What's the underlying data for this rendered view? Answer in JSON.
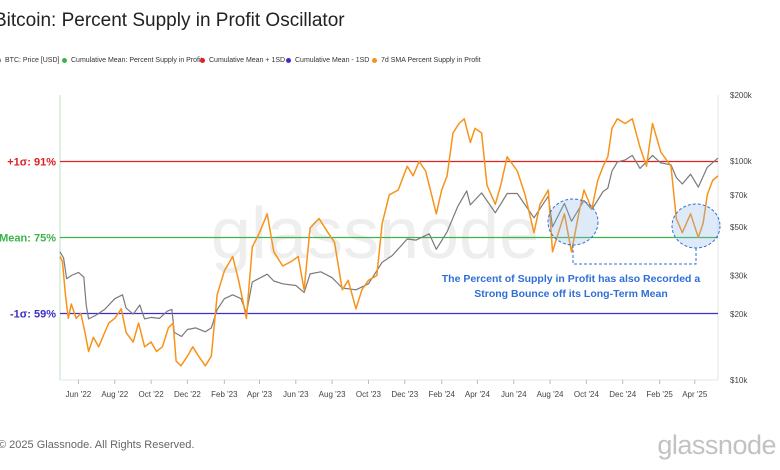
{
  "title": "Bitcoin: Percent Supply in Profit Oscillator",
  "legend": [
    {
      "label": "BTC: Price [USD]",
      "color": "#7a7a7a"
    },
    {
      "label": "Cumulative Mean: Percent Supply in Profit",
      "color": "#3cb44b"
    },
    {
      "label": "Cumulative Mean + 1SD",
      "color": "#e02020"
    },
    {
      "label": "Cumulative Mean - 1SD",
      "color": "#3a2fc9"
    },
    {
      "label": "7d SMA Percent Supply in Profit",
      "color": "#f7931a"
    }
  ],
  "footer": {
    "copyright": "© 2025 Glassnode. All Rights Reserved.",
    "brand": "glassnode"
  },
  "watermark": "glassnode",
  "annotation": {
    "line1": "The Percent of Supply in Profit has also Recorded a",
    "line2": "Strong Bounce off its Long-Term Mean",
    "color": "#2f6fd6"
  },
  "chart_data": {
    "type": "line",
    "x_labels": [
      "Jun '22",
      "Aug '22",
      "Oct '22",
      "Dec '22",
      "Feb '23",
      "Apr '23",
      "Jun '23",
      "Aug '23",
      "Oct '23",
      "Dec '23",
      "Feb '24",
      "Apr '24",
      "Jun '24",
      "Aug '24",
      "Oct '24",
      "Dec '24",
      "Feb '25",
      "Apr '25"
    ],
    "x_start": "2022-05-01",
    "x_end": "2025-05-10",
    "left_axis": {
      "unit": "%",
      "ylim": [
        45,
        105
      ],
      "labels": [
        {
          "value": 91,
          "label": "+1σ: 91%",
          "color": "#e02020"
        },
        {
          "value": 75,
          "label": "Mean: 75%",
          "color": "#3cb44b"
        },
        {
          "value": 59,
          "label": "-1σ: 59%",
          "color": "#3a2fc9"
        }
      ]
    },
    "right_axis": {
      "scale": "log",
      "ylim": [
        10000,
        200000
      ],
      "tick_values": [
        10000,
        20000,
        30000,
        50000,
        70000,
        100000,
        200000
      ],
      "tick_labels": [
        "$10k",
        "$20k",
        "$30k",
        "$50k",
        "$70k",
        "$100k",
        "$200k"
      ]
    },
    "reference_lines": [
      {
        "name": "Cumulative Mean + 1SD",
        "value": 91,
        "color": "#e02020"
      },
      {
        "name": "Cumulative Mean: Percent Supply in Profit",
        "value": 75,
        "color": "#3cb44b"
      },
      {
        "name": "Cumulative Mean - 1SD",
        "value": 59,
        "color": "#3a2fc9"
      }
    ],
    "series": [
      {
        "name": "BTC: Price [USD]",
        "axis": "right",
        "color": "#7a7a7a",
        "points": [
          [
            "2022-05-01",
            38500
          ],
          [
            "2022-05-07",
            36000
          ],
          [
            "2022-05-12",
            29000
          ],
          [
            "2022-05-20",
            30000
          ],
          [
            "2022-06-01",
            31000
          ],
          [
            "2022-06-10",
            29500
          ],
          [
            "2022-06-14",
            22000
          ],
          [
            "2022-06-18",
            19000
          ],
          [
            "2022-07-01",
            19800
          ],
          [
            "2022-07-15",
            21000
          ],
          [
            "2022-08-01",
            23500
          ],
          [
            "2022-08-14",
            24500
          ],
          [
            "2022-08-20",
            21300
          ],
          [
            "2022-09-01",
            20000
          ],
          [
            "2022-09-12",
            22000
          ],
          [
            "2022-09-20",
            19000
          ],
          [
            "2022-10-01",
            19300
          ],
          [
            "2022-10-15",
            19100
          ],
          [
            "2022-10-28",
            20600
          ],
          [
            "2022-11-05",
            21000
          ],
          [
            "2022-11-09",
            16500
          ],
          [
            "2022-11-21",
            15800
          ],
          [
            "2022-12-01",
            17000
          ],
          [
            "2022-12-15",
            17300
          ],
          [
            "2022-12-31",
            16600
          ],
          [
            "2023-01-10",
            17300
          ],
          [
            "2023-01-20",
            21000
          ],
          [
            "2023-02-01",
            23500
          ],
          [
            "2023-02-15",
            24500
          ],
          [
            "2023-03-01",
            23500
          ],
          [
            "2023-03-10",
            20200
          ],
          [
            "2023-03-20",
            28000
          ],
          [
            "2023-04-14",
            30400
          ],
          [
            "2023-04-25",
            28300
          ],
          [
            "2023-05-10",
            27500
          ],
          [
            "2023-06-01",
            27000
          ],
          [
            "2023-06-15",
            25100
          ],
          [
            "2023-06-25",
            30500
          ],
          [
            "2023-07-13",
            31200
          ],
          [
            "2023-08-01",
            29300
          ],
          [
            "2023-08-18",
            26300
          ],
          [
            "2023-09-10",
            25800
          ],
          [
            "2023-10-01",
            27500
          ],
          [
            "2023-10-24",
            34500
          ],
          [
            "2023-11-10",
            37000
          ],
          [
            "2023-12-05",
            44000
          ],
          [
            "2023-12-20",
            43500
          ],
          [
            "2024-01-11",
            46500
          ],
          [
            "2024-01-23",
            39500
          ],
          [
            "2024-02-10",
            47500
          ],
          [
            "2024-02-28",
            62000
          ],
          [
            "2024-03-14",
            73000
          ],
          [
            "2024-03-20",
            63000
          ],
          [
            "2024-04-08",
            71500
          ],
          [
            "2024-05-01",
            58000
          ],
          [
            "2024-05-21",
            71000
          ],
          [
            "2024-06-07",
            71000
          ],
          [
            "2024-07-05",
            55000
          ],
          [
            "2024-07-29",
            69000
          ],
          [
            "2024-08-05",
            50000
          ],
          [
            "2024-08-25",
            64000
          ],
          [
            "2024-09-06",
            53000
          ],
          [
            "2024-09-27",
            66000
          ],
          [
            "2024-10-10",
            60000
          ],
          [
            "2024-10-29",
            72500
          ],
          [
            "2024-11-06",
            75000
          ],
          [
            "2024-11-13",
            90000
          ],
          [
            "2024-11-22",
            99000
          ],
          [
            "2024-12-05",
            101000
          ],
          [
            "2024-12-17",
            106000
          ],
          [
            "2024-12-30",
            92500
          ],
          [
            "2025-01-20",
            106000
          ],
          [
            "2025-02-03",
            98000
          ],
          [
            "2025-02-20",
            96000
          ],
          [
            "2025-03-01",
            84000
          ],
          [
            "2025-03-11",
            78500
          ],
          [
            "2025-03-25",
            87000
          ],
          [
            "2025-04-07",
            76000
          ],
          [
            "2025-04-22",
            93500
          ],
          [
            "2025-05-10",
            103000
          ]
        ]
      },
      {
        "name": "7d SMA Percent Supply in Profit",
        "axis": "left",
        "color": "#f7931a",
        "points": [
          [
            "2022-05-01",
            71
          ],
          [
            "2022-05-05",
            70
          ],
          [
            "2022-05-10",
            63
          ],
          [
            "2022-05-15",
            58
          ],
          [
            "2022-05-20",
            61
          ],
          [
            "2022-05-28",
            58
          ],
          [
            "2022-06-05",
            59
          ],
          [
            "2022-06-12",
            55
          ],
          [
            "2022-06-18",
            51
          ],
          [
            "2022-06-26",
            54
          ],
          [
            "2022-07-05",
            52
          ],
          [
            "2022-07-15",
            55
          ],
          [
            "2022-07-22",
            57
          ],
          [
            "2022-08-01",
            58
          ],
          [
            "2022-08-12",
            60
          ],
          [
            "2022-08-20",
            55
          ],
          [
            "2022-09-01",
            53
          ],
          [
            "2022-09-10",
            57
          ],
          [
            "2022-09-20",
            52
          ],
          [
            "2022-10-01",
            53
          ],
          [
            "2022-10-10",
            51
          ],
          [
            "2022-10-20",
            52
          ],
          [
            "2022-10-30",
            56
          ],
          [
            "2022-11-07",
            57
          ],
          [
            "2022-11-12",
            49
          ],
          [
            "2022-11-20",
            48
          ],
          [
            "2022-12-01",
            50
          ],
          [
            "2022-12-10",
            52
          ],
          [
            "2022-12-20",
            50
          ],
          [
            "2022-12-31",
            48
          ],
          [
            "2023-01-10",
            50
          ],
          [
            "2023-01-20",
            63
          ],
          [
            "2023-02-01",
            68
          ],
          [
            "2023-02-15",
            71
          ],
          [
            "2023-02-25",
            66
          ],
          [
            "2023-03-10",
            58
          ],
          [
            "2023-03-20",
            73
          ],
          [
            "2023-04-01",
            76
          ],
          [
            "2023-04-14",
            80
          ],
          [
            "2023-04-25",
            72
          ],
          [
            "2023-05-10",
            69
          ],
          [
            "2023-05-25",
            70
          ],
          [
            "2023-06-05",
            71
          ],
          [
            "2023-06-15",
            64
          ],
          [
            "2023-06-25",
            77
          ],
          [
            "2023-07-10",
            79
          ],
          [
            "2023-07-25",
            76
          ],
          [
            "2023-08-05",
            74
          ],
          [
            "2023-08-18",
            64
          ],
          [
            "2023-08-28",
            66
          ],
          [
            "2023-09-10",
            60
          ],
          [
            "2023-09-20",
            64
          ],
          [
            "2023-10-01",
            66
          ],
          [
            "2023-10-15",
            67
          ],
          [
            "2023-10-24",
            78
          ],
          [
            "2023-11-05",
            84
          ],
          [
            "2023-11-20",
            85
          ],
          [
            "2023-12-05",
            90
          ],
          [
            "2023-12-15",
            88
          ],
          [
            "2023-12-25",
            91
          ],
          [
            "2024-01-05",
            89
          ],
          [
            "2024-01-15",
            84
          ],
          [
            "2024-01-23",
            80
          ],
          [
            "2024-02-01",
            85
          ],
          [
            "2024-02-10",
            88
          ],
          [
            "2024-02-20",
            97
          ],
          [
            "2024-03-01",
            99
          ],
          [
            "2024-03-10",
            100
          ],
          [
            "2024-03-20",
            95
          ],
          [
            "2024-03-28",
            98
          ],
          [
            "2024-04-08",
            97
          ],
          [
            "2024-04-17",
            86
          ],
          [
            "2024-05-01",
            82
          ],
          [
            "2024-05-10",
            86
          ],
          [
            "2024-05-21",
            92
          ],
          [
            "2024-06-07",
            89
          ],
          [
            "2024-06-20",
            84
          ],
          [
            "2024-07-05",
            76
          ],
          [
            "2024-07-15",
            82
          ],
          [
            "2024-07-29",
            85
          ],
          [
            "2024-08-05",
            72
          ],
          [
            "2024-08-15",
            76
          ],
          [
            "2024-08-25",
            80
          ],
          [
            "2024-09-06",
            72
          ],
          [
            "2024-09-18",
            80
          ],
          [
            "2024-09-27",
            85
          ],
          [
            "2024-10-10",
            81
          ],
          [
            "2024-10-20",
            87
          ],
          [
            "2024-10-29",
            90
          ],
          [
            "2024-11-06",
            92
          ],
          [
            "2024-11-13",
            98
          ],
          [
            "2024-11-22",
            100
          ],
          [
            "2024-12-05",
            99
          ],
          [
            "2024-12-17",
            100
          ],
          [
            "2024-12-30",
            94
          ],
          [
            "2025-01-10",
            90
          ],
          [
            "2025-01-20",
            99
          ],
          [
            "2025-02-03",
            93
          ],
          [
            "2025-02-20",
            90
          ],
          [
            "2025-03-01",
            79
          ],
          [
            "2025-03-11",
            76
          ],
          [
            "2025-03-25",
            80
          ],
          [
            "2025-04-07",
            75
          ],
          [
            "2025-04-15",
            78
          ],
          [
            "2025-04-22",
            84
          ],
          [
            "2025-05-01",
            87
          ],
          [
            "2025-05-10",
            88
          ]
        ]
      }
    ]
  }
}
